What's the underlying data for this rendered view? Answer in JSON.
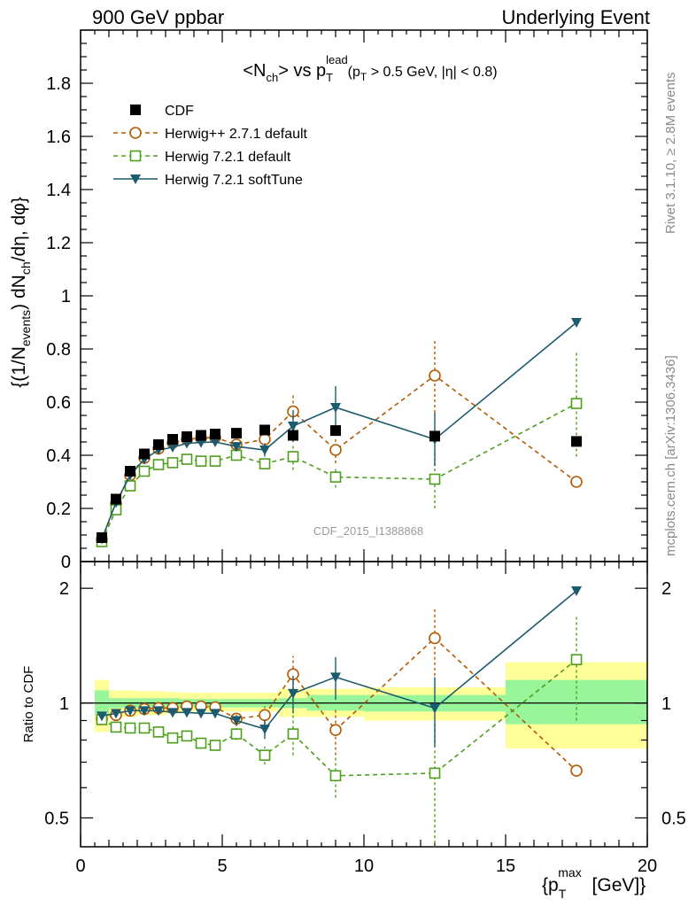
{
  "header": {
    "left": "900 GeV ppbar",
    "right": "Underlying Event"
  },
  "side": {
    "rivet": "Rivet 3.1.10, ≥ 2.8M events",
    "mcplots": "mcplots.cern.ch [arXiv:1306.3436]"
  },
  "chart_data": {
    "type": "scatter",
    "title": "<N_ch> vs p_T^lead (p_T > 0.5 GeV, |η| < 0.8)",
    "watermark": "CDF_2015_I1388868",
    "xlabel": "{p_T^max [GeV]}",
    "ylabel": "{(1/N_events) dN_ch/dη, dφ}",
    "ratio_ylabel": "Ratio to CDF",
    "xlim": [
      0,
      20
    ],
    "ylim": [
      0,
      2.0
    ],
    "ratio_ylim": [
      0.42,
      2.35
    ],
    "ratio_log": true,
    "x_ticks": [
      "0",
      "5",
      "10",
      "15",
      "20"
    ],
    "y_ticks": [
      "0",
      "0.2",
      "0.4",
      "0.6",
      "0.8",
      "1",
      "1.2",
      "1.4",
      "1.6",
      "1.8"
    ],
    "ratio_ticks": [
      "0.5",
      "1",
      "2"
    ],
    "legend_position": "top-left",
    "series": [
      {
        "name": "CDF",
        "color": "#000000",
        "marker": "square-filled",
        "x": [
          0.75,
          1.25,
          1.75,
          2.25,
          2.75,
          3.25,
          3.75,
          4.25,
          4.75,
          5.5,
          6.5,
          7.5,
          9.0,
          12.5,
          17.5
        ],
        "y": [
          0.09,
          0.235,
          0.34,
          0.405,
          0.44,
          0.46,
          0.47,
          0.475,
          0.48,
          0.483,
          0.495,
          0.475,
          0.493,
          0.472,
          0.452
        ],
        "ratio": [
          1.0,
          1.0,
          1.0,
          1.0,
          1.0,
          1.0,
          1.0,
          1.0,
          1.0,
          1.0,
          1.0,
          1.0,
          1.0,
          1.0,
          1.0
        ]
      },
      {
        "name": "Herwig++ 2.7.1 default",
        "color": "#b35900",
        "marker": "circle-open",
        "line": "dashed",
        "x": [
          0.75,
          1.25,
          1.75,
          2.25,
          2.75,
          3.25,
          3.75,
          4.25,
          4.75,
          5.5,
          6.5,
          7.5,
          9.0,
          12.5,
          17.5
        ],
        "y": [
          0.082,
          0.218,
          0.325,
          0.39,
          0.425,
          0.447,
          0.46,
          0.465,
          0.467,
          0.44,
          0.46,
          0.565,
          0.42,
          0.7,
          0.3
        ],
        "err": [
          0.005,
          0.008,
          0.01,
          0.01,
          0.01,
          0.01,
          0.01,
          0.01,
          0.01,
          0.015,
          0.025,
          0.07,
          0.05,
          0.14,
          0.01
        ],
        "ratio": [
          0.91,
          0.93,
          0.955,
          0.965,
          0.97,
          0.97,
          0.98,
          0.98,
          0.975,
          0.91,
          0.93,
          1.19,
          0.85,
          1.48,
          0.665
        ],
        "ratio_err": [
          0.01,
          0.015,
          0.015,
          0.015,
          0.015,
          0.015,
          0.015,
          0.015,
          0.015,
          0.03,
          0.05,
          0.14,
          0.12,
          0.3,
          0.01
        ]
      },
      {
        "name": "Herwig 7.2.1 default",
        "color": "#4d9e1c",
        "marker": "square-open",
        "line": "dashed",
        "x": [
          0.75,
          1.25,
          1.75,
          2.25,
          2.75,
          3.25,
          3.75,
          4.25,
          4.75,
          5.5,
          6.5,
          7.5,
          9.0,
          12.5,
          17.5
        ],
        "y": [
          0.075,
          0.195,
          0.285,
          0.34,
          0.365,
          0.372,
          0.385,
          0.378,
          0.378,
          0.4,
          0.368,
          0.395,
          0.318,
          0.31,
          0.595
        ],
        "err": [
          0.005,
          0.008,
          0.01,
          0.01,
          0.01,
          0.01,
          0.01,
          0.01,
          0.01,
          0.012,
          0.02,
          0.05,
          0.04,
          0.11,
          0.2
        ],
        "ratio": [
          0.905,
          0.865,
          0.86,
          0.86,
          0.84,
          0.81,
          0.82,
          0.785,
          0.775,
          0.83,
          0.73,
          0.83,
          0.645,
          0.655,
          1.3
        ],
        "ratio_err": [
          0.01,
          0.015,
          0.015,
          0.015,
          0.015,
          0.015,
          0.015,
          0.015,
          0.015,
          0.03,
          0.04,
          0.1,
          0.08,
          0.24,
          0.4
        ]
      },
      {
        "name": "Herwig 7.2.1 softTune",
        "color": "#1c5a6e",
        "marker": "triangle-down-filled",
        "line": "solid",
        "x": [
          0.75,
          1.25,
          1.75,
          2.25,
          2.75,
          3.25,
          3.75,
          4.25,
          4.75,
          5.5,
          6.5,
          7.5,
          9.0,
          12.5,
          17.5
        ],
        "y": [
          0.085,
          0.222,
          0.325,
          0.385,
          0.42,
          0.43,
          0.445,
          0.448,
          0.45,
          0.433,
          0.42,
          0.51,
          0.58,
          0.46,
          0.9
        ],
        "err": [
          0.005,
          0.008,
          0.01,
          0.01,
          0.01,
          0.01,
          0.01,
          0.01,
          0.01,
          0.015,
          0.025,
          0.06,
          0.08,
          0.1,
          0.01
        ],
        "ratio": [
          0.925,
          0.94,
          0.955,
          0.955,
          0.955,
          0.945,
          0.945,
          0.94,
          0.94,
          0.9,
          0.855,
          1.06,
          1.17,
          0.97,
          1.97
        ],
        "ratio_err": [
          0.01,
          0.015,
          0.015,
          0.015,
          0.015,
          0.015,
          0.015,
          0.015,
          0.015,
          0.03,
          0.05,
          0.12,
          0.15,
          0.2,
          0.01
        ]
      }
    ],
    "cdf_uncertainty_bands": {
      "x_edges": [
        0.5,
        1.0,
        1.5,
        2.0,
        2.5,
        3.0,
        3.5,
        4.0,
        4.5,
        5.0,
        6.0,
        7.0,
        8.0,
        10.0,
        15.0,
        20.0
      ],
      "inner": [
        [
          0.93,
          1.08
        ],
        [
          0.97,
          1.03
        ],
        [
          0.97,
          1.03
        ],
        [
          0.97,
          1.03
        ],
        [
          0.97,
          1.03
        ],
        [
          0.97,
          1.03
        ],
        [
          0.975,
          1.025
        ],
        [
          0.975,
          1.025
        ],
        [
          0.975,
          1.025
        ],
        [
          0.975,
          1.025
        ],
        [
          0.975,
          1.025
        ],
        [
          0.97,
          1.03
        ],
        [
          0.955,
          1.05
        ],
        [
          0.95,
          1.05
        ],
        [
          0.88,
          1.15
        ]
      ],
      "outer": [
        [
          0.84,
          1.15
        ],
        [
          0.92,
          1.08
        ],
        [
          0.92,
          1.08
        ],
        [
          0.93,
          1.075
        ],
        [
          0.93,
          1.075
        ],
        [
          0.94,
          1.07
        ],
        [
          0.95,
          1.065
        ],
        [
          0.95,
          1.065
        ],
        [
          0.95,
          1.065
        ],
        [
          0.95,
          1.065
        ],
        [
          0.95,
          1.065
        ],
        [
          0.92,
          1.09
        ],
        [
          0.92,
          1.09
        ],
        [
          0.9,
          1.1
        ],
        [
          0.76,
          1.28
        ]
      ]
    },
    "colors": {
      "band_inner": "#99f599",
      "band_outer": "#ffff99"
    }
  }
}
